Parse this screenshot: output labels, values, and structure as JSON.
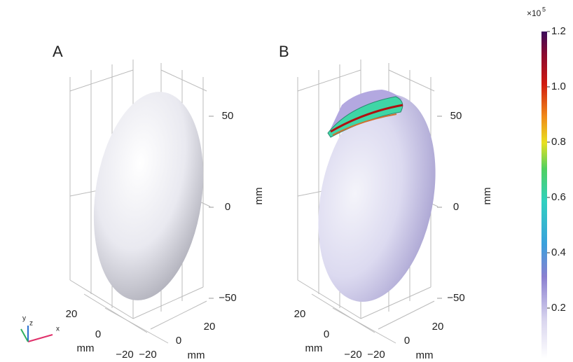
{
  "panels": [
    {
      "label": "A",
      "z_axis": {
        "title": "mm",
        "ticks": [
          50,
          0,
          {
            "value": -50,
            "label": "−50"
          }
        ]
      },
      "left_axis": {
        "title": "mm",
        "ticks": [
          20,
          0,
          {
            "value": -20,
            "label": "−20"
          }
        ]
      },
      "right_axis": {
        "title": "mm",
        "ticks": [
          20,
          0,
          {
            "value": -20,
            "label": "−20"
          }
        ]
      }
    },
    {
      "label": "B",
      "z_axis": {
        "title": "mm",
        "ticks": [
          50,
          0,
          {
            "value": -50,
            "label": "−50"
          }
        ]
      },
      "left_axis": {
        "title": "mm",
        "ticks": [
          20,
          0,
          {
            "value": -20,
            "label": "−20"
          }
        ]
      },
      "right_axis": {
        "title": "mm",
        "ticks": [
          20,
          0,
          {
            "value": -20,
            "label": "−20"
          }
        ]
      }
    }
  ],
  "colorbar": {
    "multiplier": "×10",
    "exponent": "5",
    "lim": [
      0,
      1.2
    ],
    "ticks": [
      0.2,
      0.4,
      0.6,
      0.8,
      {
        "value": 1,
        "label": "1.0"
      },
      1.2
    ]
  },
  "triad": {
    "x": "x",
    "y": "y",
    "z": "z"
  }
}
